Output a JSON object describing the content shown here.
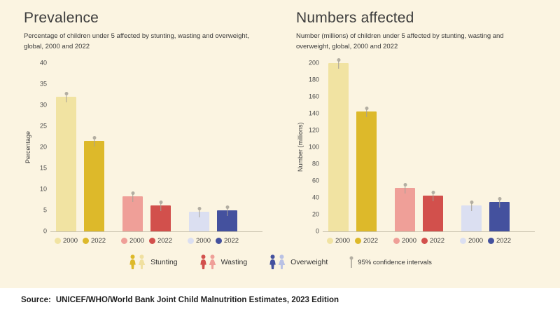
{
  "page": {
    "background": "#fbf4e1",
    "source_label": "Source:",
    "source_text": "UNICEF/WHO/World Bank Joint Child Malnutrition Estimates, 2023 Edition"
  },
  "legend": {
    "items": [
      {
        "label": "Stunting",
        "colors": [
          "#ddb92a",
          "#f0e0a0"
        ]
      },
      {
        "label": "Wasting",
        "colors": [
          "#d2504c",
          "#ef9f98"
        ]
      },
      {
        "label": "Overweight",
        "colors": [
          "#44519e",
          "#b9c1e4"
        ]
      }
    ],
    "ci_label": "95% confidence intervals"
  },
  "chart_data": [
    {
      "type": "bar",
      "title": "Prevalence",
      "subtitle": "Percentage of children under 5 affected by stunting, wasting and overweight, global, 2000 and 2022",
      "ylabel": "Percentage",
      "ymax": 40,
      "yticks": [
        0,
        5,
        10,
        15,
        20,
        25,
        30,
        35,
        40
      ],
      "groups": [
        {
          "name": "Stunting",
          "bars": [
            {
              "year": "2000",
              "value": 32.0,
              "color": "#f1e3a2"
            },
            {
              "year": "2022",
              "value": 21.5,
              "color": "#ddb92a"
            }
          ]
        },
        {
          "name": "Wasting",
          "bars": [
            {
              "year": "2000",
              "value": 8.4,
              "color": "#ef9f98"
            },
            {
              "year": "2022",
              "value": 6.2,
              "color": "#d2504c"
            }
          ]
        },
        {
          "name": "Overweight",
          "bars": [
            {
              "year": "2000",
              "value": 4.8,
              "color": "#dbdff1"
            },
            {
              "year": "2022",
              "value": 5.1,
              "color": "#44519e"
            }
          ]
        }
      ]
    },
    {
      "type": "bar",
      "title": "Numbers affected",
      "subtitle": "Number (millions) of children under 5 affected by stunting, wasting and overweight, global, 2000 and 2022",
      "ylabel": "Number (millions)",
      "ymax": 200,
      "yticks": [
        0,
        20,
        40,
        60,
        80,
        100,
        120,
        140,
        160,
        180,
        200
      ],
      "groups": [
        {
          "name": "Stunting",
          "bars": [
            {
              "year": "2000",
              "value": 200,
              "color": "#f1e3a2"
            },
            {
              "year": "2022",
              "value": 143,
              "color": "#ddb92a"
            }
          ]
        },
        {
          "name": "Wasting",
          "bars": [
            {
              "year": "2000",
              "value": 52,
              "color": "#ef9f98"
            },
            {
              "year": "2022",
              "value": 43,
              "color": "#d2504c"
            }
          ]
        },
        {
          "name": "Overweight",
          "bars": [
            {
              "year": "2000",
              "value": 31,
              "color": "#dbdff1"
            },
            {
              "year": "2022",
              "value": 35,
              "color": "#44519e"
            }
          ]
        }
      ]
    }
  ]
}
